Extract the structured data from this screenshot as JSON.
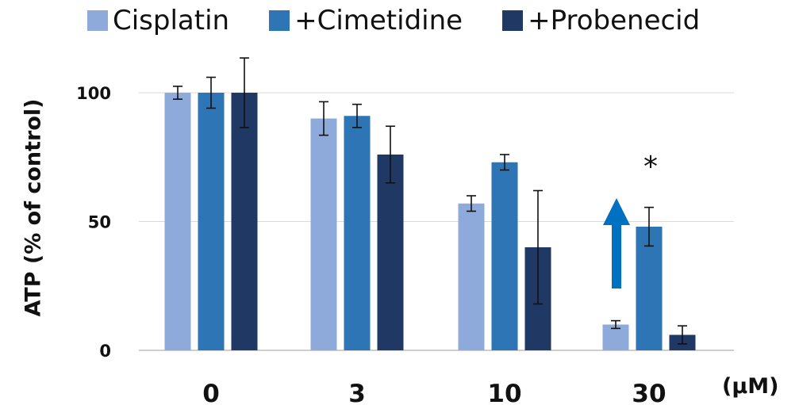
{
  "chart_data": {
    "type": "bar",
    "categories": [
      "0",
      "3",
      "10",
      "30"
    ],
    "series": [
      {
        "name": "Cisplatin",
        "color": "#8eaadb",
        "values": [
          100,
          90,
          57,
          10
        ],
        "errors": [
          2.5,
          6.5,
          3,
          1.5
        ]
      },
      {
        "name": "+Cimetidine",
        "color": "#2e75b6",
        "values": [
          100,
          91,
          73,
          48
        ],
        "errors": [
          6,
          4.5,
          3,
          7.5
        ]
      },
      {
        "name": "+Probenecid",
        "color": "#1f3864",
        "values": [
          100,
          76,
          40,
          6
        ],
        "errors": [
          13.5,
          11,
          22,
          3.5
        ]
      }
    ],
    "ylabel": "ATP (% of control)",
    "xlabel": "",
    "unit_label": "(μM)",
    "ylim": [
      0,
      100
    ],
    "yticks": [
      0,
      50,
      100
    ],
    "grid": true,
    "legend_position": "top",
    "annotations": [
      {
        "type": "text",
        "text": "*",
        "category": "30",
        "series": "+Cimetidine"
      },
      {
        "type": "arrow",
        "direction": "up",
        "category": "30",
        "color": "#0070c0"
      }
    ]
  }
}
